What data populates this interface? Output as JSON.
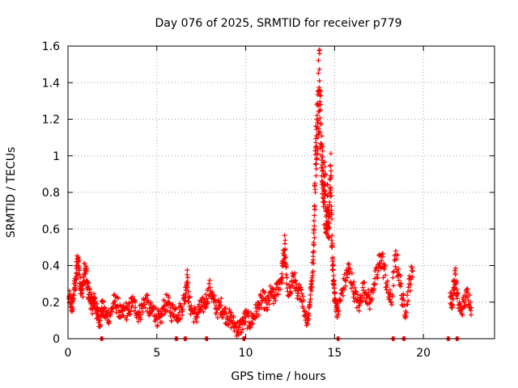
{
  "chart_data": {
    "type": "scatter",
    "title": "Day 076 of 2025, SRMTID for receiver p779",
    "xlabel": "GPS time / hours",
    "ylabel": "SRMTID / TECUs",
    "xlim": [
      0,
      24
    ],
    "ylim": [
      0,
      1.6
    ],
    "xticks": [
      0,
      5,
      10,
      15,
      20
    ],
    "xtick_labels": [
      "0",
      "5",
      "10",
      "15",
      "20"
    ],
    "yticks": [
      0,
      0.2,
      0.4,
      0.6,
      0.8,
      1.0,
      1.2,
      1.4,
      1.6
    ],
    "ytick_labels": [
      "0",
      "0.2",
      "0.4",
      "0.6",
      "0.8",
      "1",
      "1.2",
      "1.4",
      "1.6"
    ],
    "grid": true,
    "marker": "plus",
    "color": "#ff0000",
    "series": [
      {
        "name": "SRMTID",
        "points": [
          [
            0.05,
            0.22
          ],
          [
            0.15,
            0.2
          ],
          [
            0.25,
            0.17
          ],
          [
            0.35,
            0.27
          ],
          [
            0.45,
            0.33
          ],
          [
            0.5,
            0.4
          ],
          [
            0.6,
            0.42
          ],
          [
            0.7,
            0.3
          ],
          [
            0.8,
            0.25
          ],
          [
            0.9,
            0.35
          ],
          [
            1.0,
            0.37
          ],
          [
            1.1,
            0.28
          ],
          [
            1.2,
            0.24
          ],
          [
            1.3,
            0.2
          ],
          [
            1.4,
            0.18
          ],
          [
            1.5,
            0.22
          ],
          [
            1.6,
            0.15
          ],
          [
            1.7,
            0.13
          ],
          [
            1.8,
            0.1
          ],
          [
            1.9,
            0.17
          ],
          [
            2.0,
            0.15
          ],
          [
            2.2,
            0.12
          ],
          [
            2.4,
            0.14
          ],
          [
            2.6,
            0.2
          ],
          [
            2.8,
            0.18
          ],
          [
            3.0,
            0.12
          ],
          [
            3.2,
            0.16
          ],
          [
            3.4,
            0.14
          ],
          [
            3.6,
            0.2
          ],
          [
            3.8,
            0.17
          ],
          [
            4.0,
            0.13
          ],
          [
            4.2,
            0.18
          ],
          [
            4.4,
            0.22
          ],
          [
            4.6,
            0.14
          ],
          [
            4.8,
            0.16
          ],
          [
            5.0,
            0.12
          ],
          [
            5.2,
            0.09
          ],
          [
            5.4,
            0.18
          ],
          [
            5.6,
            0.2
          ],
          [
            5.8,
            0.14
          ],
          [
            6.0,
            0.16
          ],
          [
            6.2,
            0.13
          ],
          [
            6.4,
            0.17
          ],
          [
            6.6,
            0.24
          ],
          [
            6.7,
            0.35
          ],
          [
            6.8,
            0.2
          ],
          [
            7.0,
            0.15
          ],
          [
            7.2,
            0.12
          ],
          [
            7.4,
            0.16
          ],
          [
            7.6,
            0.18
          ],
          [
            7.8,
            0.22
          ],
          [
            8.0,
            0.28
          ],
          [
            8.2,
            0.2
          ],
          [
            8.4,
            0.16
          ],
          [
            8.6,
            0.18
          ],
          [
            8.8,
            0.14
          ],
          [
            9.0,
            0.12
          ],
          [
            9.2,
            0.1
          ],
          [
            9.4,
            0.07
          ],
          [
            9.6,
            0.05
          ],
          [
            9.8,
            0.08
          ],
          [
            10.0,
            0.12
          ],
          [
            10.2,
            0.09
          ],
          [
            10.4,
            0.11
          ],
          [
            10.6,
            0.15
          ],
          [
            10.8,
            0.19
          ],
          [
            11.0,
            0.22
          ],
          [
            11.2,
            0.17
          ],
          [
            11.4,
            0.25
          ],
          [
            11.6,
            0.22
          ],
          [
            11.8,
            0.28
          ],
          [
            12.0,
            0.33
          ],
          [
            12.1,
            0.4
          ],
          [
            12.2,
            0.52
          ],
          [
            12.3,
            0.3
          ],
          [
            12.5,
            0.25
          ],
          [
            12.7,
            0.35
          ],
          [
            12.9,
            0.22
          ],
          [
            13.1,
            0.28
          ],
          [
            13.3,
            0.15
          ],
          [
            13.5,
            0.1
          ],
          [
            13.6,
            0.2
          ],
          [
            13.7,
            0.3
          ],
          [
            13.8,
            0.45
          ],
          [
            13.85,
            0.6
          ],
          [
            13.9,
            0.85
          ],
          [
            13.95,
            1.05
          ],
          [
            14.0,
            1.2
          ],
          [
            14.05,
            1.18
          ],
          [
            14.1,
            1.35
          ],
          [
            14.15,
            1.41
          ],
          [
            14.2,
            1.25
          ],
          [
            14.25,
            1.05
          ],
          [
            14.3,
            0.95
          ],
          [
            14.35,
            0.85
          ],
          [
            14.4,
            0.75
          ],
          [
            14.45,
            0.9
          ],
          [
            14.5,
            0.7
          ],
          [
            14.55,
            0.62
          ],
          [
            14.6,
            0.78
          ],
          [
            14.65,
            0.55
          ],
          [
            14.7,
            0.68
          ],
          [
            14.75,
            0.8
          ],
          [
            14.8,
            0.88
          ],
          [
            14.85,
            0.5
          ],
          [
            14.9,
            0.4
          ],
          [
            14.95,
            0.32
          ],
          [
            15.0,
            0.22
          ],
          [
            15.1,
            0.18
          ],
          [
            15.2,
            0.15
          ],
          [
            15.4,
            0.25
          ],
          [
            15.6,
            0.32
          ],
          [
            15.8,
            0.38
          ],
          [
            16.0,
            0.3
          ],
          [
            16.2,
            0.22
          ],
          [
            16.4,
            0.18
          ],
          [
            16.6,
            0.28
          ],
          [
            16.8,
            0.24
          ],
          [
            17.0,
            0.2
          ],
          [
            17.2,
            0.3
          ],
          [
            17.4,
            0.35
          ],
          [
            17.6,
            0.45
          ],
          [
            17.8,
            0.38
          ],
          [
            18.0,
            0.25
          ],
          [
            18.2,
            0.2
          ],
          [
            18.4,
            0.43
          ],
          [
            18.6,
            0.38
          ],
          [
            18.8,
            0.22
          ],
          [
            19.0,
            0.15
          ],
          [
            19.2,
            0.3
          ],
          [
            19.4,
            0.37
          ],
          [
            21.5,
            0.25
          ],
          [
            21.6,
            0.18
          ],
          [
            21.7,
            0.28
          ],
          [
            21.8,
            0.35
          ],
          [
            21.9,
            0.22
          ],
          [
            22.1,
            0.15
          ],
          [
            22.3,
            0.2
          ],
          [
            22.5,
            0.25
          ],
          [
            22.7,
            0.17
          ]
        ]
      }
    ],
    "zero_gaps": [
      1.9,
      6.1,
      6.6,
      7.8,
      9.9,
      15.2,
      18.3,
      18.9,
      21.4,
      21.9
    ]
  }
}
